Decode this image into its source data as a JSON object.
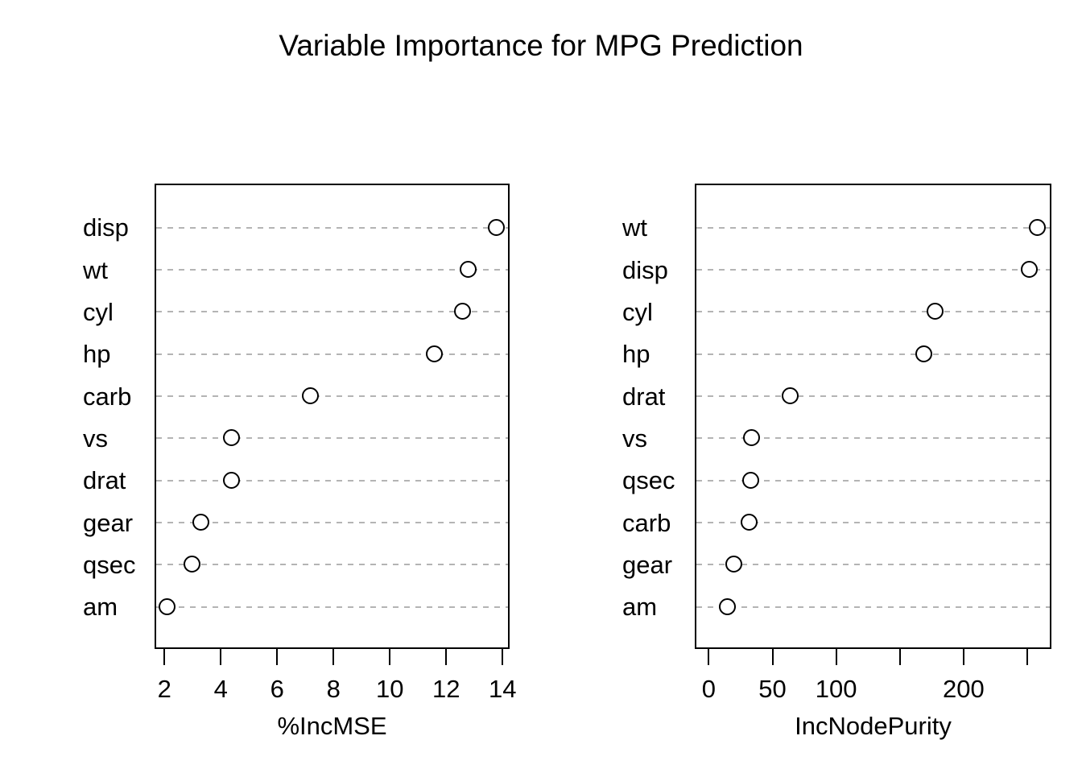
{
  "title": "Variable Importance for MPG Prediction",
  "chart_data": [
    {
      "type": "scatter",
      "panel": "left",
      "subtype": "dotchart",
      "xlabel": "%IncMSE",
      "categories_top_to_bottom": [
        "disp",
        "wt",
        "cyl",
        "hp",
        "carb",
        "vs",
        "drat",
        "gear",
        "qsec",
        "am"
      ],
      "values": [
        13.8,
        12.8,
        12.6,
        11.6,
        7.2,
        4.4,
        4.4,
        3.3,
        3.0,
        2.1
      ],
      "x_ticks": [
        2,
        4,
        6,
        8,
        10,
        12,
        14
      ],
      "x_tick_labels": [
        "2",
        "4",
        "6",
        "8",
        "10",
        "12",
        "14"
      ],
      "xlim": [
        1.65,
        14.25
      ],
      "grid": "horizontal dashed gray lines",
      "marker": "open circle",
      "legend": "none"
    },
    {
      "type": "scatter",
      "panel": "right",
      "subtype": "dotchart",
      "xlabel": "IncNodePurity",
      "categories_top_to_bottom": [
        "wt",
        "disp",
        "cyl",
        "hp",
        "drat",
        "vs",
        "qsec",
        "carb",
        "gear",
        "am"
      ],
      "values": [
        258,
        252,
        178,
        169,
        64,
        34,
        33,
        32,
        20,
        15
      ],
      "x_ticks": [
        0,
        50,
        100,
        150,
        200,
        250
      ],
      "x_tick_labels": [
        "0",
        "50",
        "100",
        "",
        "200",
        ""
      ],
      "xlim": [
        -11,
        269
      ],
      "grid": "horizontal dashed gray lines",
      "marker": "open circle",
      "legend": "none"
    }
  ],
  "colors": {
    "background": "#ffffff",
    "text": "#000000",
    "box_and_points": "#000000",
    "gridline": "#b4b4b4"
  }
}
